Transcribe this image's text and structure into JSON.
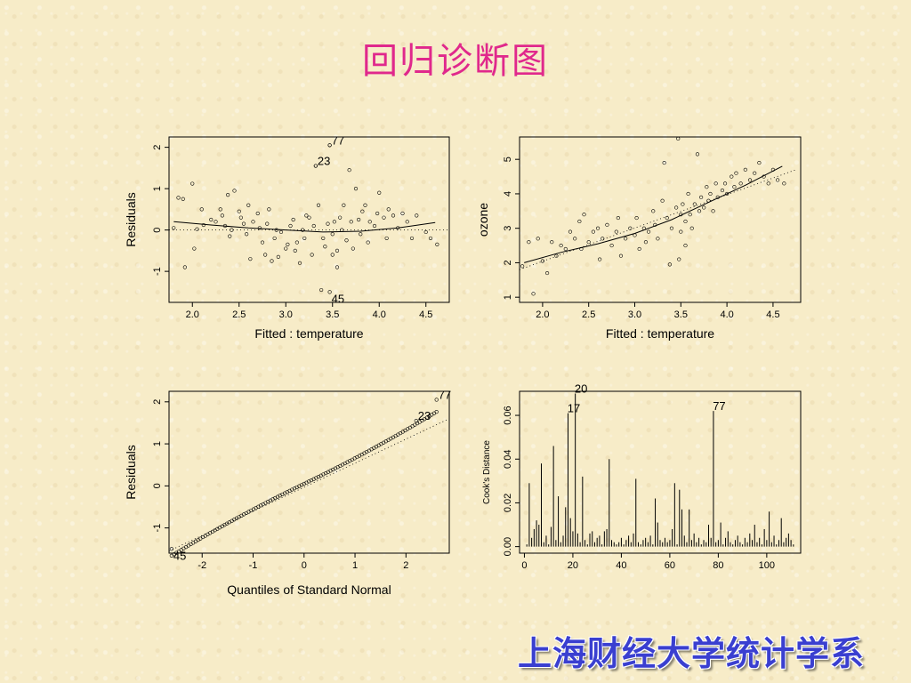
{
  "title": "回归诊断图",
  "footer": "上海财经大学统计学系",
  "chart_data": [
    {
      "type": "scatter",
      "xlabel": "Fitted : temperature",
      "ylabel": "Residuals",
      "xlim": [
        1.75,
        4.75
      ],
      "ylim": [
        -1.75,
        2.25
      ],
      "xticks": [
        "2.0",
        "2.5",
        "3.0",
        "3.5",
        "4.0",
        "4.5"
      ],
      "yticks": [
        "-1",
        "0",
        "1",
        "2"
      ],
      "reference_line": 0,
      "smooth": [
        [
          1.8,
          0.2
        ],
        [
          2.2,
          0.12
        ],
        [
          2.6,
          0.05
        ],
        [
          3.0,
          0.0
        ],
        [
          3.4,
          -0.05
        ],
        [
          3.8,
          -0.03
        ],
        [
          4.2,
          0.05
        ],
        [
          4.6,
          0.18
        ]
      ],
      "labeled_points": [
        {
          "label": "77",
          "x": 3.47,
          "y": 2.05
        },
        {
          "label": "23",
          "x": 3.32,
          "y": 1.55
        },
        {
          "label": "45",
          "x": 3.47,
          "y": -1.5
        }
      ],
      "points": [
        [
          1.8,
          0.05
        ],
        [
          1.85,
          0.78
        ],
        [
          1.9,
          0.75
        ],
        [
          1.92,
          -0.9
        ],
        [
          2.0,
          1.12
        ],
        [
          2.02,
          -0.45
        ],
        [
          2.05,
          0.02
        ],
        [
          2.1,
          0.5
        ],
        [
          2.12,
          0.12
        ],
        [
          2.2,
          0.25
        ],
        [
          2.25,
          0.2
        ],
        [
          2.3,
          0.5
        ],
        [
          2.32,
          0.35
        ],
        [
          2.35,
          0.1
        ],
        [
          2.38,
          0.85
        ],
        [
          2.4,
          -0.15
        ],
        [
          2.42,
          0.0
        ],
        [
          2.45,
          0.95
        ],
        [
          2.5,
          0.45
        ],
        [
          2.52,
          0.3
        ],
        [
          2.55,
          0.15
        ],
        [
          2.58,
          -0.1
        ],
        [
          2.6,
          0.6
        ],
        [
          2.62,
          -0.7
        ],
        [
          2.65,
          0.2
        ],
        [
          2.7,
          0.4
        ],
        [
          2.72,
          0.05
        ],
        [
          2.75,
          -0.3
        ],
        [
          2.78,
          -0.6
        ],
        [
          2.8,
          0.15
        ],
        [
          2.82,
          0.5
        ],
        [
          2.85,
          -0.75
        ],
        [
          2.88,
          -0.2
        ],
        [
          2.9,
          0.0
        ],
        [
          2.92,
          -0.65
        ],
        [
          2.95,
          -0.05
        ],
        [
          3.0,
          -0.45
        ],
        [
          3.02,
          -0.35
        ],
        [
          3.05,
          0.1
        ],
        [
          3.08,
          0.25
        ],
        [
          3.1,
          -0.5
        ],
        [
          3.12,
          -0.3
        ],
        [
          3.15,
          -0.8
        ],
        [
          3.18,
          0.0
        ],
        [
          3.2,
          -0.2
        ],
        [
          3.22,
          0.35
        ],
        [
          3.25,
          0.3
        ],
        [
          3.28,
          -0.6
        ],
        [
          3.3,
          0.1
        ],
        [
          3.32,
          1.55
        ],
        [
          3.35,
          0.6
        ],
        [
          3.38,
          -1.45
        ],
        [
          3.4,
          -0.2
        ],
        [
          3.42,
          -0.4
        ],
        [
          3.45,
          0.15
        ],
        [
          3.47,
          2.05
        ],
        [
          3.5,
          -0.6
        ],
        [
          3.5,
          -0.1
        ],
        [
          3.52,
          0.2
        ],
        [
          3.55,
          -0.9
        ],
        [
          3.55,
          -0.5
        ],
        [
          3.58,
          0.3
        ],
        [
          3.6,
          0.0
        ],
        [
          3.62,
          0.6
        ],
        [
          3.65,
          -0.25
        ],
        [
          3.68,
          1.45
        ],
        [
          3.7,
          0.2
        ],
        [
          3.72,
          -0.45
        ],
        [
          3.75,
          1.0
        ],
        [
          3.78,
          0.25
        ],
        [
          3.8,
          -0.1
        ],
        [
          3.82,
          0.45
        ],
        [
          3.85,
          0.6
        ],
        [
          3.88,
          -0.3
        ],
        [
          3.9,
          0.2
        ],
        [
          3.95,
          0.1
        ],
        [
          3.98,
          0.4
        ],
        [
          4.0,
          0.9
        ],
        [
          4.05,
          0.3
        ],
        [
          4.08,
          -0.2
        ],
        [
          4.1,
          0.5
        ],
        [
          4.15,
          0.35
        ],
        [
          4.2,
          0.05
        ],
        [
          4.25,
          0.4
        ],
        [
          4.3,
          0.2
        ],
        [
          4.35,
          -0.2
        ],
        [
          4.4,
          0.35
        ],
        [
          4.5,
          -0.05
        ],
        [
          4.55,
          -0.2
        ],
        [
          4.62,
          -0.35
        ]
      ]
    },
    {
      "type": "scatter",
      "xlabel": "Fitted : temperature",
      "ylabel": "ozone",
      "xlim": [
        1.75,
        4.8
      ],
      "ylim": [
        0.85,
        5.65
      ],
      "xticks": [
        "2.0",
        "2.5",
        "3.0",
        "3.5",
        "4.0",
        "4.5"
      ],
      "yticks": [
        "1",
        "2",
        "3",
        "4",
        "5"
      ],
      "fit_line": [
        [
          1.75,
          1.8
        ],
        [
          4.75,
          4.7
        ]
      ],
      "smooth": [
        [
          1.8,
          2.0
        ],
        [
          2.2,
          2.3
        ],
        [
          2.6,
          2.55
        ],
        [
          3.0,
          2.85
        ],
        [
          3.4,
          3.25
        ],
        [
          3.8,
          3.75
        ],
        [
          4.2,
          4.25
        ],
        [
          4.6,
          4.8
        ]
      ],
      "points": [
        [
          1.78,
          1.9
        ],
        [
          1.85,
          2.6
        ],
        [
          1.9,
          1.1
        ],
        [
          1.95,
          2.7
        ],
        [
          2.0,
          2.05
        ],
        [
          2.05,
          1.7
        ],
        [
          2.1,
          2.6
        ],
        [
          2.15,
          2.2
        ],
        [
          2.2,
          2.5
        ],
        [
          2.25,
          2.4
        ],
        [
          2.3,
          2.9
        ],
        [
          2.35,
          2.7
        ],
        [
          2.4,
          3.2
        ],
        [
          2.42,
          2.4
        ],
        [
          2.45,
          3.4
        ],
        [
          2.5,
          2.6
        ],
        [
          2.55,
          2.9
        ],
        [
          2.6,
          3.0
        ],
        [
          2.62,
          2.1
        ],
        [
          2.65,
          2.7
        ],
        [
          2.7,
          3.1
        ],
        [
          2.75,
          2.5
        ],
        [
          2.8,
          2.9
        ],
        [
          2.82,
          3.3
        ],
        [
          2.85,
          2.2
        ],
        [
          2.9,
          2.7
        ],
        [
          2.95,
          3.0
        ],
        [
          3.0,
          2.8
        ],
        [
          3.02,
          3.3
        ],
        [
          3.05,
          2.4
        ],
        [
          3.1,
          3.0
        ],
        [
          3.12,
          2.6
        ],
        [
          3.15,
          2.9
        ],
        [
          3.2,
          3.5
        ],
        [
          3.22,
          3.1
        ],
        [
          3.25,
          2.7
        ],
        [
          3.3,
          3.8
        ],
        [
          3.32,
          4.9
        ],
        [
          3.35,
          3.3
        ],
        [
          3.38,
          1.95
        ],
        [
          3.4,
          3.0
        ],
        [
          3.45,
          3.6
        ],
        [
          3.47,
          5.6
        ],
        [
          3.48,
          2.1
        ],
        [
          3.5,
          3.4
        ],
        [
          3.5,
          2.9
        ],
        [
          3.52,
          3.7
        ],
        [
          3.55,
          3.2
        ],
        [
          3.55,
          2.5
        ],
        [
          3.58,
          4.0
        ],
        [
          3.6,
          3.4
        ],
        [
          3.62,
          3.0
        ],
        [
          3.65,
          3.7
        ],
        [
          3.68,
          5.15
        ],
        [
          3.7,
          3.5
        ],
        [
          3.72,
          3.9
        ],
        [
          3.75,
          3.6
        ],
        [
          3.78,
          4.2
        ],
        [
          3.8,
          3.8
        ],
        [
          3.82,
          4.0
        ],
        [
          3.85,
          3.5
        ],
        [
          3.88,
          4.3
        ],
        [
          3.9,
          3.9
        ],
        [
          3.95,
          4.1
        ],
        [
          3.98,
          4.3
        ],
        [
          4.0,
          4.0
        ],
        [
          4.05,
          4.5
        ],
        [
          4.08,
          4.2
        ],
        [
          4.1,
          4.6
        ],
        [
          4.15,
          4.3
        ],
        [
          4.2,
          4.7
        ],
        [
          4.25,
          4.4
        ],
        [
          4.3,
          4.6
        ],
        [
          4.35,
          4.9
        ],
        [
          4.4,
          4.5
        ],
        [
          4.45,
          4.3
        ],
        [
          4.5,
          4.7
        ],
        [
          4.55,
          4.4
        ],
        [
          4.62,
          4.3
        ]
      ]
    },
    {
      "type": "scatter",
      "xlabel": "Quantiles of Standard Normal",
      "ylabel": "Residuals",
      "xlim": [
        -2.65,
        2.85
      ],
      "ylim": [
        -1.6,
        2.25
      ],
      "xticks": [
        "-2",
        "-1",
        "0",
        "1",
        "2"
      ],
      "yticks": [
        "-1",
        "0",
        "1",
        "2"
      ],
      "reference_line": [
        [
          -2.65,
          -1.55
        ],
        [
          2.85,
          1.6
        ]
      ],
      "labeled_points": [
        {
          "label": "77",
          "x": 2.6,
          "y": 2.05
        },
        {
          "label": "23",
          "x": 2.2,
          "y": 1.55
        },
        {
          "label": "45",
          "x": -2.6,
          "y": -1.5
        }
      ],
      "qq_range": [
        -2.6,
        2.6
      ],
      "qq_count": 111
    },
    {
      "type": "bar",
      "xlabel": "",
      "ylabel": "Cook's Distance",
      "xlim": [
        -2,
        114
      ],
      "ylim": [
        -0.003,
        0.071
      ],
      "xticks": [
        "0",
        "20",
        "40",
        "60",
        "80",
        "100"
      ],
      "yticks": [
        "0.00",
        "0.02",
        "0.04",
        "0.06"
      ],
      "labeled_points": [
        {
          "label": "20",
          "x": 20,
          "y": 0.07
        },
        {
          "label": "17",
          "x": 17,
          "y": 0.061
        },
        {
          "label": "77",
          "x": 77,
          "y": 0.062
        }
      ],
      "values": [
        0.001,
        0.029,
        0.004,
        0.008,
        0.012,
        0.01,
        0.038,
        0.002,
        0.005,
        0.001,
        0.009,
        0.046,
        0.003,
        0.023,
        0.002,
        0.005,
        0.018,
        0.061,
        0.013,
        0.007,
        0.07,
        0.006,
        0.002,
        0.032,
        0.003,
        0.001,
        0.006,
        0.007,
        0.002,
        0.004,
        0.005,
        0.001,
        0.007,
        0.008,
        0.04,
        0.003,
        0.002,
        0.001,
        0.002,
        0.004,
        0.001,
        0.003,
        0.005,
        0.002,
        0.006,
        0.031,
        0.002,
        0.001,
        0.003,
        0.004,
        0.002,
        0.005,
        0.001,
        0.022,
        0.011,
        0.003,
        0.002,
        0.004,
        0.002,
        0.003,
        0.008,
        0.029,
        0.001,
        0.026,
        0.017,
        0.005,
        0.002,
        0.017,
        0.003,
        0.006,
        0.002,
        0.004,
        0.001,
        0.003,
        0.002,
        0.01,
        0.004,
        0.062,
        0.002,
        0.003,
        0.011,
        0.001,
        0.004,
        0.007,
        0.002,
        0.001,
        0.003,
        0.005,
        0.002,
        0.001,
        0.004,
        0.002,
        0.006,
        0.003,
        0.01,
        0.002,
        0.004,
        0.001,
        0.008,
        0.003,
        0.016,
        0.002,
        0.005,
        0.001,
        0.003,
        0.013,
        0.002,
        0.004,
        0.006,
        0.003,
        0.001
      ]
    }
  ]
}
